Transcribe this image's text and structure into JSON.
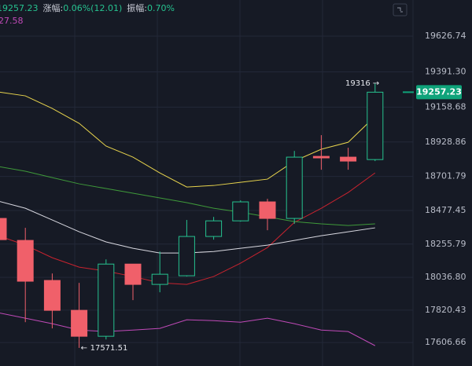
{
  "chart_data": {
    "type": "candlestick",
    "header": {
      "price": "19257.23",
      "change_label": "涨幅:",
      "change": "0.06%(12.01)",
      "amplitude_label": "振幅:",
      "amplitude": "0.70%",
      "sub_value": "27.58"
    },
    "open": [
      18425,
      18280,
      18016,
      17819,
      17648,
      18124,
      17990,
      18047,
      18306,
      18409,
      18534,
      18425,
      18834,
      18829,
      18813
    ],
    "high": [
      18477,
      18363,
      18062,
      18000,
      18155,
      18124,
      18207,
      18415,
      18435,
      18544,
      18554,
      18870,
      18974,
      18891,
      19316
    ],
    "low": [
      18207,
      17741,
      17700,
      17571.51,
      17627,
      17886,
      17938,
      18042,
      18285,
      18404,
      18347,
      18389,
      18746,
      18746,
      18803
    ],
    "close": [
      18285,
      18011,
      17819,
      17648,
      18124,
      17990,
      18057,
      18306,
      18409,
      18534,
      18425,
      18829,
      18824,
      18803,
      19257.23
    ],
    "up_color": "#26c28f",
    "down_color": "#f0606a",
    "series": [
      {
        "color": "#e8d44d",
        "values": [
          19259,
          19233,
          19150,
          19052,
          18902,
          18829,
          18725,
          18632,
          18642,
          18663,
          18684,
          18803,
          18881,
          18927,
          19098
        ]
      },
      {
        "color": "#c8232f",
        "values": [
          18311,
          18249,
          18166,
          18104,
          18078,
          18042,
          18000,
          17990,
          18042,
          18130,
          18233,
          18399,
          18492,
          18596,
          18725
        ]
      },
      {
        "color": "#3f9a3a",
        "values": [
          18767,
          18736,
          18694,
          18653,
          18622,
          18591,
          18560,
          18529,
          18492,
          18466,
          18435,
          18404,
          18389,
          18378,
          18389
        ]
      },
      {
        "color": "#d8d8e0",
        "values": [
          18539,
          18492,
          18415,
          18337,
          18270,
          18228,
          18197,
          18197,
          18207,
          18228,
          18249,
          18280,
          18311,
          18337,
          18363
        ]
      },
      {
        "color": "#c04ab8",
        "values": [
          17803,
          17767,
          17731,
          17689,
          17679,
          17689,
          17700,
          17757,
          17751,
          17741,
          17767,
          17731,
          17689,
          17679,
          17586
        ]
      }
    ],
    "max_label": "19316",
    "min_label": "17571.51",
    "last_price": 19257.23,
    "last_price_color": "#0fa37a",
    "ylim": [
      17452,
      19865
    ],
    "yticks": [
      {
        "value": 19626.74,
        "label": "19626.74"
      },
      {
        "value": 19391.3,
        "label": "19391.30"
      },
      {
        "value": 19158.68,
        "label": "19158.68"
      },
      {
        "value": 18928.86,
        "label": "18928.86"
      },
      {
        "value": 18701.79,
        "label": "18701.79"
      },
      {
        "value": 18477.45,
        "label": "18477.45"
      },
      {
        "value": 18255.79,
        "label": "18255.79"
      },
      {
        "value": 18036.8,
        "label": "18036.80"
      },
      {
        "value": 17820.43,
        "label": "17820.43"
      },
      {
        "value": 17606.66,
        "label": "17606.66"
      }
    ],
    "grid": true
  }
}
